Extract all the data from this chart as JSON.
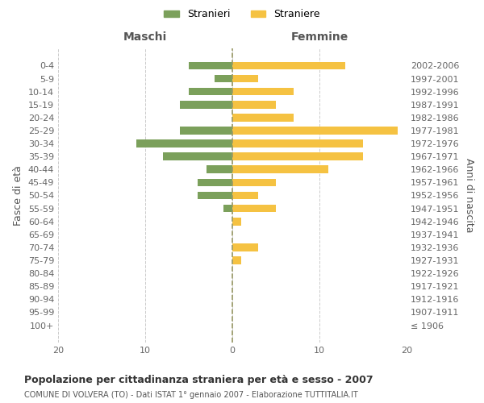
{
  "age_groups": [
    "100+",
    "95-99",
    "90-94",
    "85-89",
    "80-84",
    "75-79",
    "70-74",
    "65-69",
    "60-64",
    "55-59",
    "50-54",
    "45-49",
    "40-44",
    "35-39",
    "30-34",
    "25-29",
    "20-24",
    "15-19",
    "10-14",
    "5-9",
    "0-4"
  ],
  "birth_years": [
    "≤ 1906",
    "1907-1911",
    "1912-1916",
    "1917-1921",
    "1922-1926",
    "1927-1931",
    "1932-1936",
    "1937-1941",
    "1942-1946",
    "1947-1951",
    "1952-1956",
    "1957-1961",
    "1962-1966",
    "1967-1971",
    "1972-1976",
    "1977-1981",
    "1982-1986",
    "1987-1991",
    "1992-1996",
    "1997-2001",
    "2002-2006"
  ],
  "males": [
    0,
    0,
    0,
    0,
    0,
    0,
    0,
    0,
    0,
    1,
    4,
    4,
    3,
    8,
    11,
    6,
    0,
    6,
    5,
    2,
    5
  ],
  "females": [
    0,
    0,
    0,
    0,
    0,
    1,
    3,
    0,
    1,
    5,
    3,
    5,
    11,
    15,
    15,
    19,
    7,
    5,
    7,
    3,
    13
  ],
  "male_color": "#7ba05b",
  "female_color": "#f5c242",
  "background_color": "#ffffff",
  "grid_color": "#cccccc",
  "title": "Popolazione per cittadinanza straniera per età e sesso - 2007",
  "subtitle": "COMUNE DI VOLVERA (TO) - Dati ISTAT 1° gennaio 2007 - Elaborazione TUTTITALIA.IT",
  "ylabel_left": "Fasce di età",
  "ylabel_right": "Anni di nascita",
  "xlabel_left": "Maschi",
  "xlabel_right": "Femmine",
  "legend_male": "Stranieri",
  "legend_female": "Straniere",
  "xlim": 20
}
